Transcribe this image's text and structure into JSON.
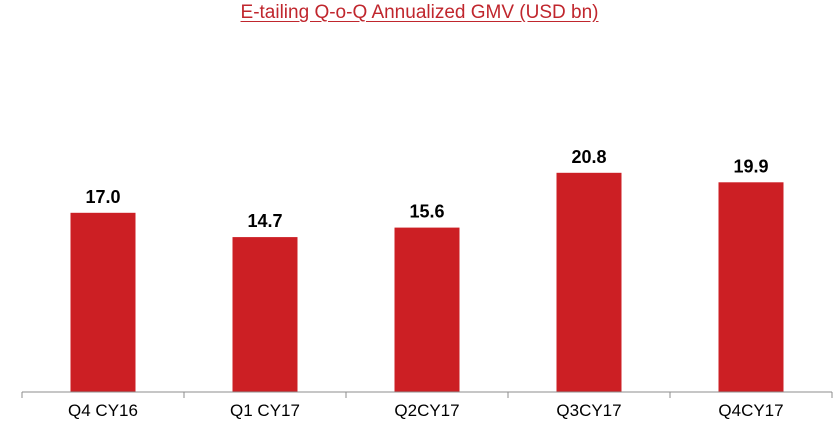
{
  "chart_data": {
    "type": "bar",
    "title": "E-tailing Q-o-Q Annualized GMV (USD bn)",
    "categories": [
      "Q4 CY16",
      "Q1 CY17",
      "Q2CY17",
      "Q3CY17",
      "Q4CY17"
    ],
    "values": [
      17.0,
      14.7,
      15.6,
      20.8,
      19.9
    ],
    "data_labels": [
      "17.0",
      "14.7",
      "15.6",
      "20.8",
      "19.9"
    ],
    "xlabel": "",
    "ylabel": "",
    "ylim": [
      0,
      26
    ],
    "grid": false,
    "legend": "none",
    "bar_color": "#cc1f24",
    "title_color": "#c0262d"
  }
}
